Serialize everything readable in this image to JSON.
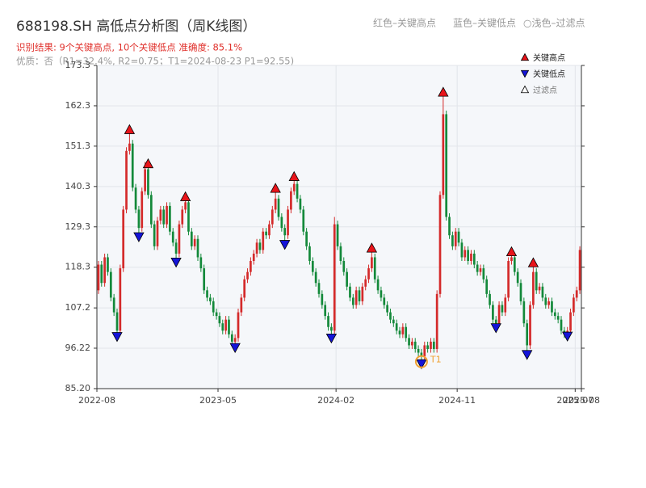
{
  "chart_data": {
    "type": "candlestick",
    "title": "688198.SH 高低点分析图（周K线图）",
    "subtitle": "识别结果: 9个关键高点, 10个关键低点  准确度: 85.1%",
    "quality_note": "优质：否（R1=32.4%, R2=0.75；T1=2024-08-23 P1=92.55)",
    "notes": [
      "红色–关键高点",
      "蓝色–关键低点",
      "○浅色–过滤点"
    ],
    "legend": {
      "position": "upper right",
      "items": [
        "关键高点",
        "关键低点",
        "过滤点"
      ]
    },
    "up_color": "#d42a2a",
    "down_color": "#13893a",
    "high_color": "#e8141a",
    "low_color": "#1414d8",
    "t1_color": "#f0a030",
    "grid": true,
    "xlim": [
      0,
      156
    ],
    "xticks": [
      {
        "value": 0,
        "label": "2022-08"
      },
      {
        "value": 39,
        "label": "2023-05"
      },
      {
        "value": 77,
        "label": "2024-02"
      },
      {
        "value": 116,
        "label": "2024-11"
      },
      {
        "value": 154,
        "label": "2025-07"
      },
      {
        "value": 156,
        "label": "2025-08"
      }
    ],
    "ylim": [
      85.2,
      173.3
    ],
    "yticks": [
      {
        "value": 85.2,
        "label": "85.20"
      },
      96.22,
      107.2,
      118.3,
      129.3,
      140.3,
      151.3,
      162.3,
      173.3
    ],
    "candles": [
      [
        112,
        120,
        111,
        119
      ],
      [
        119,
        120,
        113,
        114
      ],
      [
        114,
        122,
        113,
        121
      ],
      [
        121,
        122,
        116,
        117
      ],
      [
        117,
        118,
        109,
        110
      ],
      [
        110,
        111,
        105,
        106
      ],
      [
        106,
        107,
        99,
        101
      ],
      [
        101,
        119,
        100,
        118
      ],
      [
        118,
        135,
        117,
        134
      ],
      [
        134,
        151,
        133,
        150
      ],
      [
        150,
        155,
        149,
        152
      ],
      [
        152,
        153,
        139,
        140
      ],
      [
        140,
        141,
        133,
        134
      ],
      [
        134,
        135,
        127,
        129
      ],
      [
        129,
        140,
        128,
        139
      ],
      [
        139,
        147,
        138,
        145
      ],
      [
        145,
        146,
        137,
        138
      ],
      [
        138,
        139,
        129,
        130
      ],
      [
        130,
        131,
        123,
        124
      ],
      [
        124,
        132,
        123,
        131
      ],
      [
        131,
        135,
        130,
        134
      ],
      [
        134,
        135,
        129,
        130
      ],
      [
        130,
        136,
        129,
        135
      ],
      [
        135,
        136,
        127,
        128
      ],
      [
        128,
        129,
        124,
        125
      ],
      [
        125,
        126,
        120,
        122
      ],
      [
        122,
        131,
        121,
        130
      ],
      [
        130,
        135,
        129,
        134
      ],
      [
        134,
        138,
        133,
        136
      ],
      [
        136,
        137,
        127,
        128
      ],
      [
        128,
        129,
        123,
        124
      ],
      [
        124,
        127,
        123,
        126
      ],
      [
        126,
        127,
        120,
        121
      ],
      [
        121,
        122,
        117,
        118
      ],
      [
        118,
        119,
        111,
        112
      ],
      [
        112,
        113,
        109,
        110
      ],
      [
        110,
        111,
        108,
        109
      ],
      [
        109,
        110,
        105,
        106
      ],
      [
        106,
        107,
        104,
        105
      ],
      [
        105,
        106,
        102,
        103
      ],
      [
        103,
        104,
        100,
        101
      ],
      [
        101,
        105,
        100,
        104
      ],
      [
        104,
        105,
        99,
        100
      ],
      [
        100,
        101,
        97,
        98
      ],
      [
        98,
        100,
        96,
        99
      ],
      [
        99,
        107,
        98,
        106
      ],
      [
        106,
        111,
        105,
        110
      ],
      [
        110,
        116,
        109,
        115
      ],
      [
        115,
        118,
        114,
        117
      ],
      [
        117,
        121,
        116,
        120
      ],
      [
        120,
        123,
        119,
        122
      ],
      [
        122,
        126,
        121,
        125
      ],
      [
        125,
        126,
        122,
        123
      ],
      [
        123,
        129,
        122,
        128
      ],
      [
        128,
        129,
        126,
        127
      ],
      [
        127,
        131,
        126,
        130
      ],
      [
        130,
        135,
        129,
        134
      ],
      [
        134,
        139,
        133,
        137
      ],
      [
        137,
        138,
        131,
        132
      ],
      [
        132,
        133,
        128,
        129
      ],
      [
        129,
        130,
        125,
        127
      ],
      [
        127,
        135,
        126,
        134
      ],
      [
        134,
        140,
        133,
        139
      ],
      [
        139,
        143,
        138,
        141
      ],
      [
        141,
        142,
        136,
        137
      ],
      [
        137,
        138,
        133,
        134
      ],
      [
        134,
        135,
        127,
        128
      ],
      [
        128,
        129,
        123,
        124
      ],
      [
        124,
        125,
        119,
        120
      ],
      [
        120,
        121,
        116,
        117
      ],
      [
        117,
        118,
        113,
        114
      ],
      [
        114,
        115,
        110,
        111
      ],
      [
        111,
        112,
        107,
        108
      ],
      [
        108,
        109,
        104,
        105
      ],
      [
        105,
        106,
        101,
        102
      ],
      [
        102,
        103,
        99,
        101
      ],
      [
        101,
        132,
        100,
        130
      ],
      [
        130,
        131,
        123,
        124
      ],
      [
        124,
        125,
        119,
        120
      ],
      [
        120,
        121,
        116,
        117
      ],
      [
        117,
        118,
        112,
        113
      ],
      [
        113,
        114,
        109,
        110
      ],
      [
        110,
        111,
        107,
        108
      ],
      [
        108,
        113,
        107,
        112
      ],
      [
        112,
        113,
        108,
        109
      ],
      [
        109,
        114,
        108,
        113
      ],
      [
        113,
        116,
        112,
        115
      ],
      [
        115,
        119,
        114,
        118
      ],
      [
        118,
        123,
        117,
        121
      ],
      [
        121,
        122,
        114,
        115
      ],
      [
        115,
        116,
        111,
        112
      ],
      [
        112,
        113,
        109,
        110
      ],
      [
        110,
        111,
        107,
        108
      ],
      [
        108,
        109,
        105,
        106
      ],
      [
        106,
        107,
        103,
        104
      ],
      [
        104,
        105,
        102,
        103
      ],
      [
        103,
        104,
        100,
        101
      ],
      [
        101,
        102,
        99,
        100
      ],
      [
        100,
        103,
        99,
        102
      ],
      [
        102,
        103,
        98,
        99
      ],
      [
        99,
        100,
        96,
        97
      ],
      [
        97,
        99,
        96,
        98
      ],
      [
        98,
        99,
        95,
        96
      ],
      [
        96,
        97,
        94,
        95
      ],
      [
        95,
        96,
        92.5,
        94
      ],
      [
        94,
        98,
        93,
        97
      ],
      [
        97,
        98,
        95,
        96
      ],
      [
        96,
        99,
        95,
        98
      ],
      [
        98,
        99,
        95,
        96
      ],
      [
        96,
        112,
        95,
        111
      ],
      [
        111,
        139,
        110,
        138
      ],
      [
        138,
        166,
        137,
        160
      ],
      [
        160,
        161,
        131,
        132
      ],
      [
        132,
        133,
        126,
        127
      ],
      [
        127,
        128,
        123,
        124
      ],
      [
        124,
        129,
        123,
        128
      ],
      [
        128,
        129,
        124,
        125
      ],
      [
        125,
        126,
        120,
        121
      ],
      [
        121,
        124,
        120,
        123
      ],
      [
        123,
        124,
        119,
        120
      ],
      [
        120,
        123,
        119,
        122
      ],
      [
        122,
        123,
        118,
        119
      ],
      [
        119,
        120,
        116,
        117
      ],
      [
        117,
        119,
        116,
        118
      ],
      [
        118,
        119,
        114,
        115
      ],
      [
        115,
        116,
        110,
        111
      ],
      [
        111,
        112,
        107,
        108
      ],
      [
        108,
        109,
        103,
        104
      ],
      [
        104,
        105,
        101,
        103
      ],
      [
        103,
        109,
        102,
        108
      ],
      [
        108,
        109,
        105,
        106
      ],
      [
        106,
        111,
        105,
        110
      ],
      [
        110,
        121,
        109,
        120
      ],
      [
        120,
        122,
        119,
        121
      ],
      [
        121,
        122,
        116,
        117
      ],
      [
        117,
        118,
        113,
        114
      ],
      [
        114,
        115,
        108,
        109
      ],
      [
        109,
        110,
        102,
        103
      ],
      [
        103,
        104,
        94.5,
        97
      ],
      [
        97,
        109,
        96,
        108
      ],
      [
        108,
        119,
        107,
        117
      ],
      [
        117,
        118,
        111,
        112
      ],
      [
        112,
        114,
        111,
        113
      ],
      [
        113,
        114,
        109,
        110
      ],
      [
        110,
        111,
        107,
        108
      ],
      [
        108,
        110,
        107,
        109
      ],
      [
        109,
        110,
        105,
        106
      ],
      [
        106,
        107,
        104,
        105
      ],
      [
        105,
        106,
        103,
        104
      ],
      [
        104,
        105,
        100,
        101
      ],
      [
        101,
        102,
        99,
        100
      ],
      [
        100,
        102,
        99,
        101
      ],
      [
        101,
        107,
        100,
        106
      ],
      [
        106,
        111,
        105,
        110
      ],
      [
        110,
        113,
        109,
        112
      ],
      [
        112,
        124,
        111,
        123
      ]
    ],
    "key_highs": {
      "x": [
        10,
        16,
        28,
        57,
        63,
        88,
        111,
        133,
        140
      ],
      "values": [
        155.8,
        146.5,
        137.5,
        139.8,
        143,
        123.5,
        166,
        122.5,
        119.5
      ]
    },
    "key_lows": {
      "x": [
        6,
        13,
        25,
        44,
        60,
        75,
        104,
        128,
        138,
        151
      ],
      "values": [
        99.4,
        126.6,
        119.7,
        96.4,
        124.5,
        99,
        92,
        101.8,
        94.5,
        99.5
      ]
    },
    "t1": {
      "x": 104,
      "value": 92.55,
      "label": "T1"
    }
  }
}
